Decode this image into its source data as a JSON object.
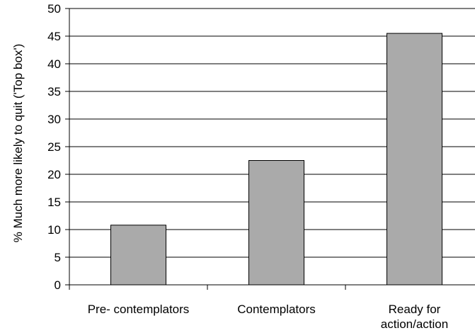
{
  "chart_data": {
    "type": "bar",
    "title": "",
    "xlabel": "",
    "ylabel": "% Much more likely to quit ('Top box')",
    "categories": [
      "Pre- contemplators",
      "Contemplators",
      "Ready for action/action"
    ],
    "category_lines": [
      [
        "Pre- contemplators"
      ],
      [
        "Contemplators"
      ],
      [
        "Ready for",
        "action/action"
      ]
    ],
    "values": [
      10.8,
      22.5,
      45.5
    ],
    "ylim": [
      0,
      50
    ],
    "yticks": [
      0,
      5,
      10,
      15,
      20,
      25,
      30,
      35,
      40,
      45,
      50
    ],
    "grid": true,
    "legend": "none",
    "bar_color": "#aaaaaa",
    "bar_edge_color": "#000000"
  }
}
